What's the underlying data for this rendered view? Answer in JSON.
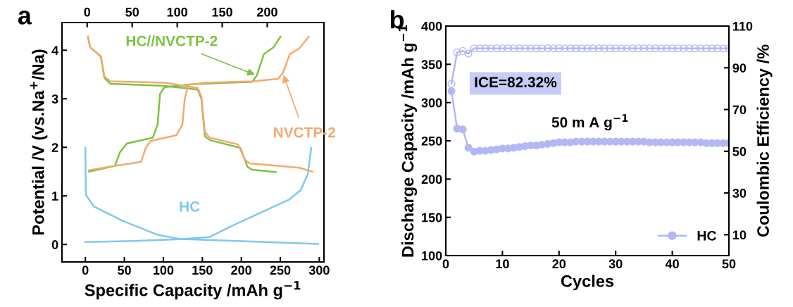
{
  "chart_data": [
    {
      "type": "line",
      "title": "a",
      "xlabel": "Specific Capacity /mAh g$^{−1}$",
      "ylabel": "Potential /V (vs.Na$^{+}$/Na)",
      "xlim": [
        -30,
        306
      ],
      "xticks": [
        0,
        50,
        100,
        150,
        200,
        250,
        300
      ],
      "x2lim": [
        -28,
        263
      ],
      "x2ticks": [
        0,
        50,
        100,
        150,
        200
      ],
      "ylim": [
        -0.36,
        4.57
      ],
      "yticks": [
        0,
        1,
        2,
        3,
        4
      ],
      "series": [
        {
          "name": "HC//NVCTP-2",
          "color": "#7dc242",
          "axis": "x2",
          "x": [
            2.1,
            30.9,
            36.2,
            44.1,
            73.0,
            78.2,
            80.9,
            86.1,
            117.6,
            183.2,
            188.4,
            196.3,
            206.9,
            214.7
          ],
          "values": [
            1.5,
            1.62,
            1.89,
            2.08,
            2.2,
            2.47,
            3.1,
            3.24,
            3.3,
            3.35,
            3.48,
            3.92,
            4.06,
            4.28
          ]
        },
        {
          "color": "#7dc242",
          "axis": "x2",
          "x": [
            0.8,
            3.4,
            15.2,
            19.1,
            25.7,
            83.5,
            122.8,
            126.8,
            130.7,
            136.0,
            170.1,
            178.0,
            183.2,
            209.4
          ],
          "values": [
            4.28,
            4.06,
            3.87,
            3.43,
            3.31,
            3.27,
            3.19,
            3.0,
            2.23,
            2.15,
            1.99,
            1.6,
            1.54,
            1.49
          ]
        },
        {
          "name": "NVCTP-2",
          "color": "#f4a870",
          "axis": "x2",
          "x": [
            2.1,
            30.9,
            59.8,
            65.1,
            70.3,
            99.2,
            105.7,
            108.4,
            112.4,
            130.7,
            183.2,
            212.0,
            217.3,
            225.2,
            235.7,
            246.2
          ],
          "values": [
            1.53,
            1.62,
            1.7,
            1.99,
            2.13,
            2.25,
            2.47,
            3.0,
            3.29,
            3.33,
            3.36,
            3.41,
            3.53,
            3.92,
            4.04,
            4.28
          ]
        },
        {
          "color": "#f4a870",
          "axis": "x2",
          "x": [
            0.8,
            3.4,
            15.2,
            19.1,
            25.7,
            86.1,
            122.8,
            126.8,
            130.7,
            136.0,
            167.5,
            175.4,
            180.6,
            235.7,
            250.2
          ],
          "values": [
            4.28,
            4.06,
            3.87,
            3.46,
            3.36,
            3.33,
            3.22,
            3.05,
            2.32,
            2.2,
            2.06,
            1.74,
            1.67,
            1.58,
            1.5
          ]
        },
        {
          "color": "#7ec8f0",
          "x": [
            0,
            0.6,
            11.1,
            47.3,
            92.4,
            122.6,
            182.7,
            298.7
          ],
          "values": [
            1.99,
            1.02,
            0.78,
            0.49,
            0.2,
            0.11,
            0.08,
            0.01
          ]
        },
        {
          "name": "HC",
          "color": "#7ec8f0",
          "x": [
            0,
            62.3,
            122.6,
            158.7,
            188.8,
            227.9,
            261.1,
            276.2,
            285.2,
            289.7
          ],
          "values": [
            0.05,
            0.07,
            0.11,
            0.15,
            0.39,
            0.68,
            0.92,
            1.12,
            1.45,
            1.99
          ]
        }
      ]
    },
    {
      "type": "line",
      "title": "b",
      "xlabel": "Cycles",
      "ylabel": "Discharge Capacity /mAh g$^{−1}$",
      "y2label": "Coulombic Efficiency /%",
      "xlim": [
        0,
        50
      ],
      "xticks": [
        0,
        10,
        20,
        30,
        40,
        50
      ],
      "ylim": [
        100,
        400
      ],
      "yticks": [
        100,
        150,
        200,
        250,
        300,
        350,
        400
      ],
      "y2lim": [
        0,
        110
      ],
      "y2ticks": [
        10,
        30,
        50,
        70,
        90,
        110
      ],
      "marker": "circle",
      "legend": "bottom right",
      "annotations": [
        "ICE=82.32%",
        "50 m A g$^{−1}$"
      ],
      "x": [
        1,
        2,
        3,
        4,
        5,
        6,
        7,
        8,
        9,
        10,
        11,
        12,
        13,
        14,
        15,
        16,
        17,
        18,
        19,
        20,
        21,
        22,
        23,
        24,
        25,
        26,
        27,
        28,
        29,
        30,
        31,
        32,
        33,
        34,
        35,
        36,
        37,
        38,
        39,
        40,
        41,
        42,
        43,
        44,
        45,
        46,
        47,
        48,
        49,
        50
      ],
      "series": [
        {
          "name": "HC",
          "color": "#b3b8f5",
          "values": [
            315,
            266,
            265,
            241,
            236,
            237,
            237,
            238,
            239,
            240,
            240,
            241,
            242,
            243,
            244,
            244,
            245,
            246,
            247,
            248,
            248,
            248,
            249,
            249,
            249,
            249,
            249,
            249,
            249,
            249,
            249,
            249,
            249,
            249,
            249,
            248,
            248,
            248,
            248,
            248,
            248,
            248,
            248,
            248,
            248,
            247,
            247,
            247,
            247,
            247
          ]
        },
        {
          "color": "#b3b8f5",
          "axis": "y2",
          "values": [
            82.3,
            97.4,
            98.1,
            96.8,
            99.3,
            99.3,
            99.3,
            99.3,
            99.3,
            99.3,
            99.3,
            99.3,
            99.3,
            99.3,
            99.3,
            99.3,
            99.3,
            99.3,
            99.3,
            99.3,
            99.3,
            99.3,
            99.3,
            99.3,
            99.3,
            99.3,
            99.3,
            99.3,
            99.3,
            99.3,
            99.3,
            99.3,
            99.3,
            99.3,
            99.3,
            99.3,
            99.3,
            99.3,
            99.3,
            99.3,
            99.3,
            99.3,
            99.3,
            99.3,
            99.3,
            99.3,
            99.3,
            99.3,
            99.3,
            99.3
          ]
        }
      ]
    }
  ]
}
